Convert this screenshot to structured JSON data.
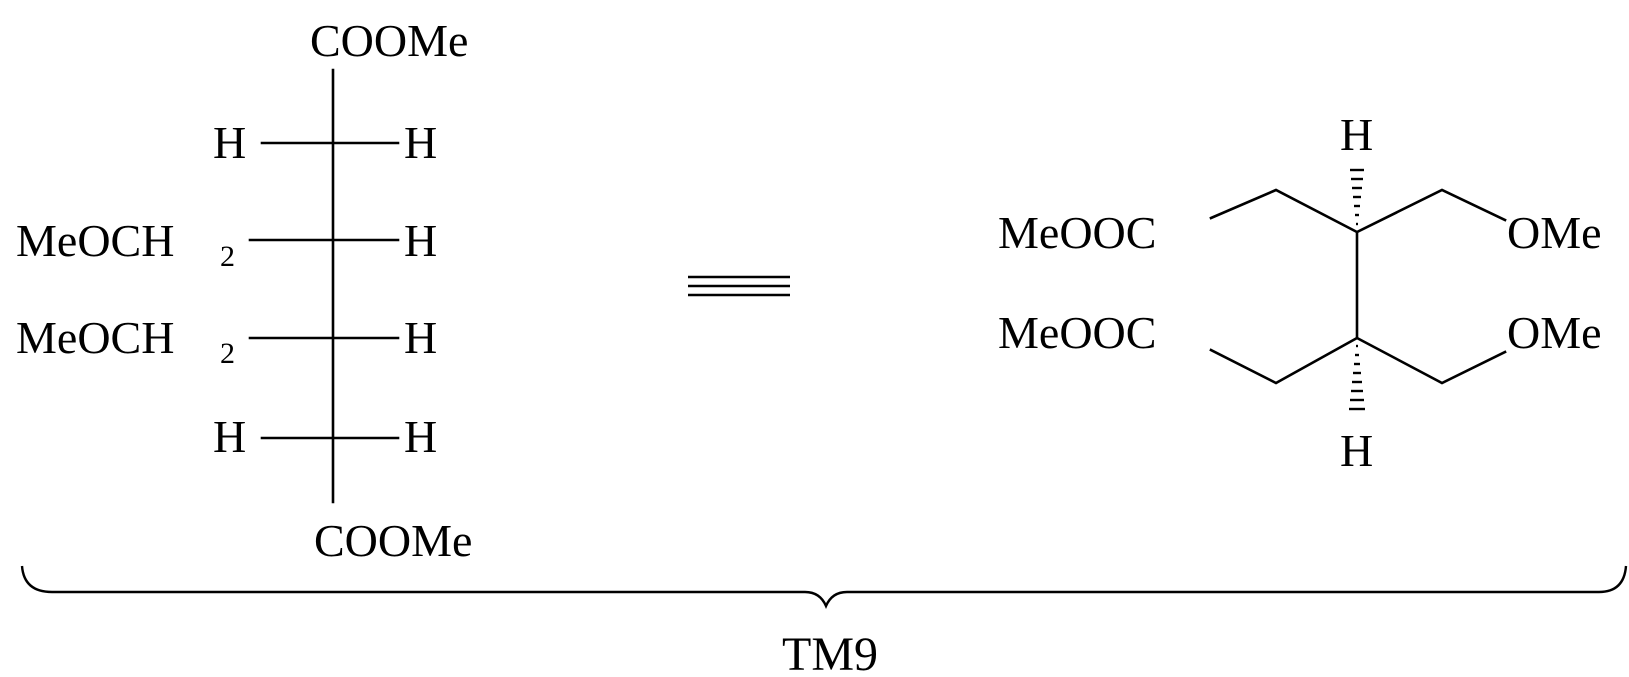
{
  "colors": {
    "ink": "#000000",
    "background": "#ffffff"
  },
  "fischer": {
    "top": "COOMe",
    "bottom": "COOMe",
    "rows": [
      {
        "left": "H",
        "left_sub": "",
        "right": "H"
      },
      {
        "left": "MeOCH",
        "left_sub": "2",
        "right": "H"
      },
      {
        "left": "MeOCH",
        "left_sub": "2",
        "right": "H"
      },
      {
        "left": "H",
        "left_sub": "",
        "right": "H"
      }
    ]
  },
  "equivalence_symbol": "identical-to-symbol",
  "skeletal": {
    "top_left_group": "MeOOC",
    "bottom_left_group": "MeOOC",
    "top_right_group": "OMe",
    "bottom_right_group": "OMe",
    "top_h": "H",
    "bottom_h": "H"
  },
  "caption": "TM9"
}
